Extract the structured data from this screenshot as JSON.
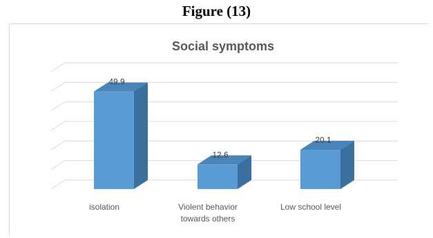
{
  "figure_caption": "Figure (13)",
  "colors": {
    "bar_front": "#5b9bd5",
    "bar_side": "#3a6f9e",
    "bar_top": "#4a84b8",
    "grid": "#d9d9d9"
  },
  "chart_data": {
    "type": "bar",
    "title": "Social symptoms",
    "categories": [
      [
        "isolation"
      ],
      [
        "Violent behavior",
        "towards others"
      ],
      [
        "Low school level"
      ]
    ],
    "values": [
      49.9,
      12.6,
      20.1
    ],
    "ylim": [
      0,
      60
    ],
    "grid": true,
    "three_d": true
  }
}
